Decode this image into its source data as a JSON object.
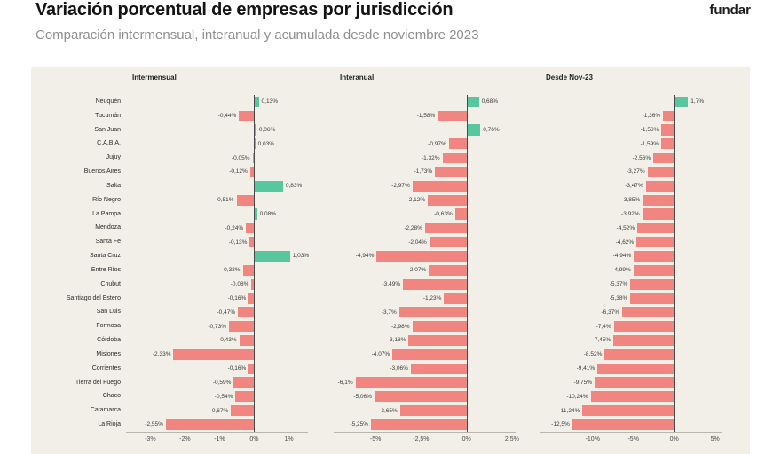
{
  "header": {
    "title": "Variación porcentual de empresas por jurisdicción",
    "subtitle": "Comparación intermensual, interanual y acumulada desde noviembre 2023",
    "logo": "fundar"
  },
  "colors": {
    "positive": "#57c7a0",
    "negative": "#f0867f",
    "chart_bg": "#f1efe8",
    "zero_line": "#4a4a4a"
  },
  "chart_data": {
    "type": "bar",
    "orientation": "horizontal",
    "title": "Variación porcentual de empresas por jurisdicción",
    "subtitle": "Comparación intermensual, interanual y acumulada desde noviembre 2023",
    "grid": false,
    "legend": "none",
    "categories": [
      "Neuquén",
      "Tucumán",
      "San Juan",
      "C.A.B.A.",
      "Jujuy",
      "Buenos Aires",
      "Salta",
      "Río Negro",
      "La Pampa",
      "Mendoza",
      "Santa Fe",
      "Santa Cruz",
      "Entre Ríos",
      "Chubut",
      "Santiago del Estero",
      "San Luis",
      "Formosa",
      "Córdoba",
      "Misiones",
      "Corrientes",
      "Tierra del Fuego",
      "Chaco",
      "Catamarca",
      "La Rioja"
    ],
    "panels": [
      {
        "label": "Intermensual",
        "xlim": [
          -3.7,
          1.55
        ],
        "ticks": [
          {
            "v": -3,
            "label": "-3%"
          },
          {
            "v": -2,
            "label": "-2%"
          },
          {
            "v": -1,
            "label": "-1%"
          },
          {
            "v": 0,
            "label": "0%"
          },
          {
            "v": 1,
            "label": "1%"
          }
        ],
        "values": [
          0.13,
          -0.44,
          0.06,
          0.03,
          -0.05,
          -0.12,
          0.83,
          -0.51,
          0.08,
          -0.24,
          -0.13,
          1.03,
          -0.33,
          -0.08,
          -0.16,
          -0.47,
          -0.73,
          -0.43,
          -2.33,
          -0.16,
          -0.59,
          -0.54,
          -0.67,
          -2.55
        ],
        "value_labels": [
          "0,13%",
          "-0,44%",
          "0,06%",
          "0,03%",
          "-0,05%",
          "-0,12%",
          "0,83%",
          "-0,51%",
          "0,08%",
          "-0,24%",
          "-0,13%",
          "1,03%",
          "-0,33%",
          "-0,08%",
          "-0,16%",
          "-0,47%",
          "-0,73%",
          "-0,43%",
          "-2,33%",
          "-0,16%",
          "-0,59%",
          "-0,54%",
          "-0,67%",
          "-2,55%"
        ]
      },
      {
        "label": "Interanual",
        "xlim": [
          -7.3,
          2.7
        ],
        "ticks": [
          {
            "v": -5,
            "label": "-5%"
          },
          {
            "v": -2.5,
            "label": "-2,5%"
          },
          {
            "v": 0,
            "label": "0%"
          },
          {
            "v": 2.5,
            "label": "2,5%"
          }
        ],
        "values": [
          0.68,
          -1.58,
          0.76,
          -0.97,
          -1.32,
          -1.73,
          -2.97,
          -2.12,
          -0.63,
          -2.28,
          -2.04,
          -4.94,
          -2.07,
          -3.49,
          -1.23,
          -3.7,
          -2.98,
          -3.18,
          -4.07,
          -3.06,
          -6.1,
          -5.06,
          -3.65,
          -5.25
        ],
        "value_labels": [
          "0,68%",
          "-1,58%",
          "0,76%",
          "-0,97%",
          "-1,32%",
          "-1,73%",
          "-2,97%",
          "-2,12%",
          "-0,63%",
          "-2,28%",
          "-2,04%",
          "-4,94%",
          "-2,07%",
          "-3,49%",
          "-1,23%",
          "-3,7%",
          "-2,98%",
          "-3,18%",
          "-4,07%",
          "-3,06%",
          "-6,1%",
          "-5,06%",
          "-3,65%",
          "-5,25%"
        ]
      },
      {
        "label": "Desde Nov-23",
        "xlim": [
          -16.5,
          5.8
        ],
        "ticks": [
          {
            "v": -10,
            "label": "-10%"
          },
          {
            "v": -5,
            "label": "-5%"
          },
          {
            "v": 0,
            "label": "0%"
          },
          {
            "v": 5,
            "label": "5%"
          }
        ],
        "values": [
          1.7,
          -1.36,
          -1.56,
          -1.59,
          -2.56,
          -3.27,
          -3.47,
          -3.85,
          -3.92,
          -4.52,
          -4.62,
          -4.94,
          -4.99,
          -5.37,
          -5.38,
          -6.37,
          -7.4,
          -7.45,
          -8.52,
          -9.41,
          -9.75,
          -10.24,
          -11.24,
          -12.5
        ],
        "value_labels": [
          "1,7%",
          "-1,36%",
          "-1,56%",
          "-1,59%",
          "-2,56%",
          "-3,27%",
          "-3,47%",
          "-3,85%",
          "-3,92%",
          "-4,52%",
          "-4,62%",
          "-4,94%",
          "-4,99%",
          "-5,37%",
          "-5,38%",
          "-6,37%",
          "-7,4%",
          "-7,45%",
          "-8,52%",
          "-9,41%",
          "-9,75%",
          "-10,24%",
          "-11,24%",
          "-12,5%"
        ]
      }
    ]
  }
}
